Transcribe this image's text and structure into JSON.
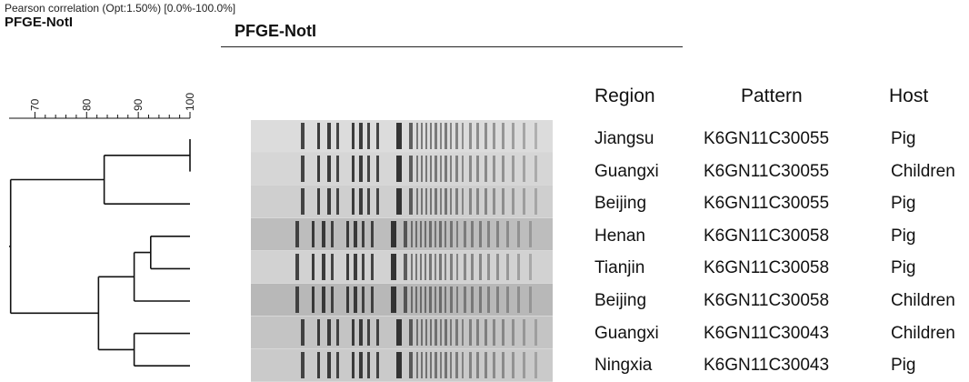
{
  "header": {
    "correlation_note": "Pearson correlation (Opt:1.50%) [0.0%-100.0%]",
    "left_title": "PFGE-NotI",
    "center_title": "PFGE-NotI"
  },
  "scale": {
    "ticks": [
      "70",
      "80",
      "90",
      "100"
    ],
    "min": 65,
    "max": 100
  },
  "table": {
    "headers": {
      "region": "Region",
      "pattern": "Pattern",
      "host": "Host"
    },
    "rows": [
      {
        "region": "Jiangsu",
        "pattern": "K6GN11C30055",
        "host": "Pig"
      },
      {
        "region": "Guangxi",
        "pattern": "K6GN11C30055",
        "host": "Children"
      },
      {
        "region": "Beijing",
        "pattern": "K6GN11C30055",
        "host": "Pig"
      },
      {
        "region": "Henan",
        "pattern": "K6GN11C30058",
        "host": "Pig"
      },
      {
        "region": "Tianjin",
        "pattern": "K6GN11C30058",
        "host": "Pig"
      },
      {
        "region": "Beijing",
        "pattern": "K6GN11C30058",
        "host": "Children"
      },
      {
        "region": "Guangxi",
        "pattern": "K6GN11C30043",
        "host": "Children"
      },
      {
        "region": "Ningxia",
        "pattern": "K6GN11C30043",
        "host": "Pig"
      }
    ]
  },
  "dendrogram": {
    "merges": [
      {
        "id": "A",
        "children": [
          "0",
          "1"
        ],
        "similarity": 100
      },
      {
        "id": "B",
        "children": [
          "A",
          "2"
        ],
        "similarity": 83.4
      },
      {
        "id": "C",
        "children": [
          "3",
          "4"
        ],
        "similarity": 92.4
      },
      {
        "id": "D",
        "children": [
          "C",
          "5"
        ],
        "similarity": 89.2
      },
      {
        "id": "E",
        "children": [
          "6",
          "7"
        ],
        "similarity": 89.2
      },
      {
        "id": "F",
        "children": [
          "D",
          "E"
        ],
        "similarity": 82.3
      },
      {
        "id": "G",
        "children": [
          "B",
          "F"
        ],
        "similarity": 65.3
      }
    ]
  },
  "colors": {
    "line": "#111111",
    "gel_background": "#d8d8d8",
    "band": "#2a2a2a"
  }
}
